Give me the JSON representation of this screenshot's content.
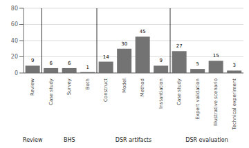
{
  "chart_data": {
    "type": "bar",
    "categories": [
      "Review",
      "Case study",
      "Survey",
      "Both",
      "Construct",
      "Model",
      "Method",
      "Instantiation",
      "Case study",
      "Expert validation",
      "Illustrative scenario",
      "Technical experiment"
    ],
    "values": [
      9,
      6,
      6,
      1,
      14,
      30,
      45,
      9,
      27,
      5,
      15,
      3
    ],
    "color": "#737373",
    "ylim": [
      0,
      80
    ],
    "yticks": [
      0,
      20,
      40,
      60,
      80
    ],
    "grid": true,
    "data_labels": true,
    "groups": [
      {
        "name": "Review",
        "categories": [
          "Review"
        ]
      },
      {
        "name": "BHS",
        "categories": [
          "Case study",
          "Survey",
          "Both"
        ]
      },
      {
        "name": "DSR artifacts",
        "categories": [
          "Construct",
          "Model",
          "Method",
          "Instantiation"
        ]
      },
      {
        "name": "DSR evaluation",
        "categories": [
          "Case study",
          "Expert validation",
          "Illustrative scenario",
          "Technical experiment"
        ]
      }
    ]
  }
}
